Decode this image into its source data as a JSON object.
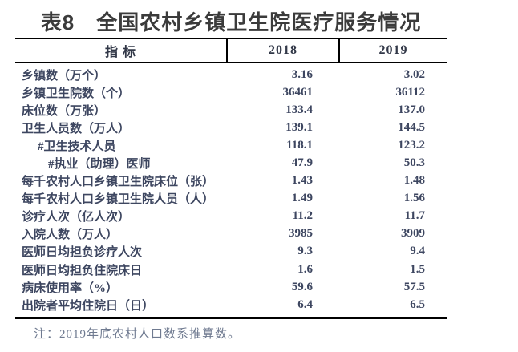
{
  "title": "表8　全国农村乡镇卫生院医疗服务情况",
  "chart_data": {
    "type": "table",
    "columns": [
      "指 标",
      "2018",
      "2019"
    ],
    "rows": [
      {
        "label": "乡镇数（万个）",
        "indent": 0,
        "values": [
          "3.16",
          "3.02"
        ]
      },
      {
        "label": "乡镇卫生院数（个）",
        "indent": 0,
        "values": [
          "36461",
          "36112"
        ]
      },
      {
        "label": "床位数（万张）",
        "indent": 0,
        "values": [
          "133.4",
          "137.0"
        ]
      },
      {
        "label": "卫生人员数（万人）",
        "indent": 0,
        "values": [
          "139.1",
          "144.5"
        ]
      },
      {
        "label": "#卫生技术人员",
        "indent": 1,
        "values": [
          "118.1",
          "123.2"
        ]
      },
      {
        "label": "#执业（助理）医师",
        "indent": 2,
        "values": [
          "47.9",
          "50.3"
        ]
      },
      {
        "label": "每千农村人口乡镇卫生院床位（张）",
        "indent": 0,
        "values": [
          "1.43",
          "1.48"
        ]
      },
      {
        "label": "每千农村人口乡镇卫生院人员（人）",
        "indent": 0,
        "values": [
          "1.49",
          "1.56"
        ]
      },
      {
        "label": "诊疗人次（亿人次）",
        "indent": 0,
        "values": [
          "11.2",
          "11.7"
        ]
      },
      {
        "label": "入院人数（万人）",
        "indent": 0,
        "values": [
          "3985",
          "3909"
        ]
      },
      {
        "label": "医师日均担负诊疗人次",
        "indent": 0,
        "values": [
          "9.3",
          "9.4"
        ]
      },
      {
        "label": "医师日均担负住院床日",
        "indent": 0,
        "values": [
          "1.6",
          "1.5"
        ]
      },
      {
        "label": "病床使用率（%）",
        "indent": 0,
        "values": [
          "59.6",
          "57.5"
        ]
      },
      {
        "label": "出院者平均住院日（日）",
        "indent": 0,
        "values": [
          "6.4",
          "6.5"
        ]
      }
    ]
  },
  "note": "注：2019年底农村人口数系推算数。",
  "colors": {
    "title_text": "#3b3b3b",
    "table_text": "#3d4660",
    "header_text": "#323848",
    "rule": "#000000",
    "note_text": "#6f7a90",
    "background": "#ffffff"
  }
}
